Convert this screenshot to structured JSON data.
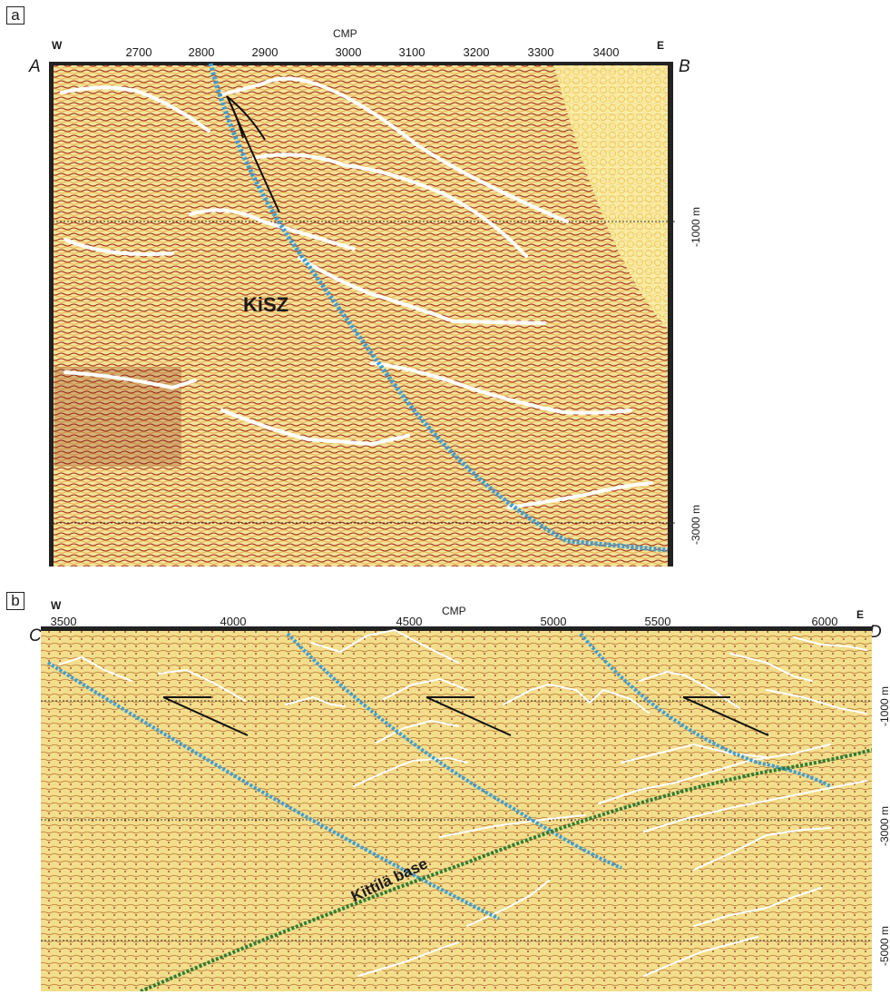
{
  "panel_a": {
    "panel_label": "a",
    "axis_title": "CMP",
    "west": "W",
    "east": "E",
    "corner_left": "A",
    "corner_right": "B",
    "ticks": [
      "2700",
      "2800",
      "2900",
      "3000",
      "3100",
      "3200",
      "3300",
      "3400"
    ],
    "depth_labels": [
      "-1000 m",
      "-3000 m"
    ],
    "zone_label": "KiSZ"
  },
  "panel_b": {
    "panel_label": "b",
    "axis_title": "CMP",
    "west": "W",
    "east": "E",
    "corner_left": "C",
    "corner_right": "D",
    "ticks": [
      "3500",
      "4000",
      "4500",
      "5000",
      "5500",
      "6000"
    ],
    "depth_labels": [
      "-1000 m",
      "-3000 m",
      "-5000 m"
    ],
    "base_label": "Kittilä base"
  },
  "colors": {
    "seismic_bg": "#f4e39a",
    "reflector": "#ffffff",
    "fault_blue": "#3d9fd6",
    "base_green": "#2e7d32",
    "thrust_black": "#111111"
  }
}
